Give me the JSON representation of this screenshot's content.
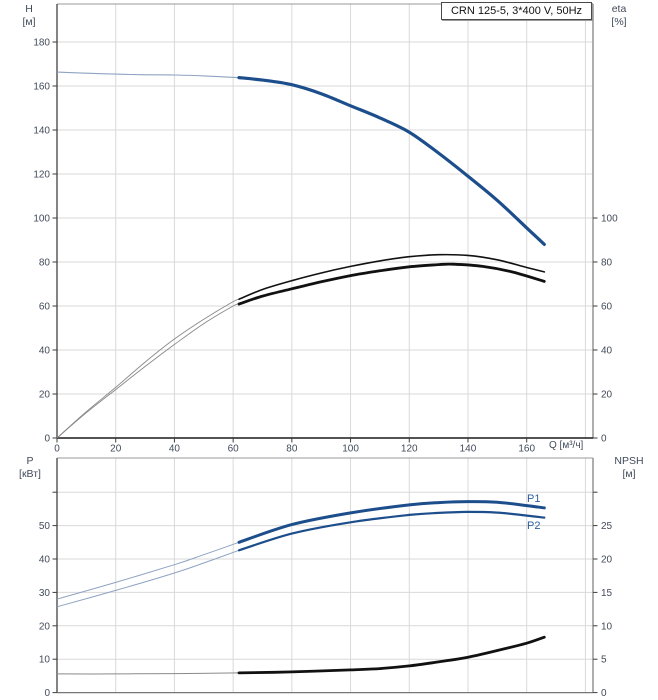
{
  "title_box": "CRN 125-5, 3*400 V, 50Hz",
  "colors": {
    "curve_blue": "#1d4e8c",
    "curve_blue_thin": "#8fa3c2",
    "curve_black": "#111111",
    "curve_black_thin": "#8a8a8a",
    "grid": "#d9d9d9",
    "border_dark": "#4f4f4f",
    "border_light": "#999999",
    "axis_bottom": "#1a1a1a",
    "tick_mark": "#3c3c3c",
    "tick_text": "#414b5a",
    "series_label_blue": "#2e5f9e"
  },
  "chart_data": [
    {
      "type": "line",
      "title": "CRN 125-5, 3*400 V, 50Hz",
      "xlabel": "Q [м³/ч]",
      "xlim": [
        0,
        182.6
      ],
      "x_ticks": [
        0,
        20,
        40,
        60,
        80,
        100,
        120,
        140,
        160
      ],
      "grid": true,
      "left_axis": {
        "label": "H",
        "unit": "[м]",
        "ticks": [
          0,
          20,
          40,
          60,
          80,
          100,
          120,
          140,
          160,
          180
        ],
        "lim": [
          0,
          197
        ]
      },
      "right_axis": {
        "label": "eta",
        "unit": "[%]",
        "ticks": [
          0,
          20,
          40,
          60,
          80,
          100
        ],
        "lim": [
          0,
          100
        ]
      },
      "duty_bold_from": 62,
      "series": [
        {
          "name": "H",
          "axis": "left",
          "color": "blue",
          "points": [
            [
              0,
              166.3
            ],
            [
              10,
              165.8
            ],
            [
              20,
              165.4
            ],
            [
              30,
              165.1
            ],
            [
              40,
              165.0
            ],
            [
              50,
              164.6
            ],
            [
              62,
              163.8
            ],
            [
              70,
              162.7
            ],
            [
              80,
              160.6
            ],
            [
              90,
              156.5
            ],
            [
              100,
              151.0
            ],
            [
              110,
              145.5
            ],
            [
              120,
              139.0
            ],
            [
              130,
              129.5
            ],
            [
              140,
              119.0
            ],
            [
              150,
              108.0
            ],
            [
              160,
              95.5
            ],
            [
              166,
              88.0
            ]
          ]
        },
        {
          "name": "eta-pump",
          "axis": "right",
          "color": "black",
          "points": [
            [
              0,
              0
            ],
            [
              10,
              12.0
            ],
            [
              20,
              23.0
            ],
            [
              30,
              34.5
            ],
            [
              40,
              45.0
            ],
            [
              50,
              54.0
            ],
            [
              60,
              62.0
            ],
            [
              70,
              67.5
            ],
            [
              80,
              71.5
            ],
            [
              90,
              75.0
            ],
            [
              100,
              78.0
            ],
            [
              110,
              80.5
            ],
            [
              120,
              82.4
            ],
            [
              130,
              83.3
            ],
            [
              140,
              83.0
            ],
            [
              150,
              81.0
            ],
            [
              160,
              77.5
            ],
            [
              166,
              75.5
            ]
          ]
        },
        {
          "name": "eta-total",
          "axis": "right",
          "color": "black",
          "points": [
            [
              0,
              0
            ],
            [
              10,
              11.5
            ],
            [
              20,
              22.0
            ],
            [
              30,
              32.5
            ],
            [
              40,
              42.5
            ],
            [
              50,
              52.0
            ],
            [
              60,
              60.0
            ],
            [
              70,
              64.5
            ],
            [
              80,
              67.8
            ],
            [
              90,
              71.0
            ],
            [
              100,
              73.8
            ],
            [
              110,
              76.0
            ],
            [
              120,
              77.8
            ],
            [
              130,
              78.8
            ],
            [
              135,
              79.0
            ],
            [
              145,
              78.0
            ],
            [
              155,
              75.5
            ],
            [
              166,
              71.2
            ]
          ]
        }
      ]
    },
    {
      "type": "line",
      "xlabel": "",
      "xlim": [
        0,
        182.6
      ],
      "x_ticks": [],
      "grid": true,
      "left_axis": {
        "label": "P",
        "unit": "[кВт]",
        "ticks": [
          0,
          10,
          20,
          30,
          40,
          50
        ],
        "unlabeled_ticks": [
          60
        ],
        "lim": [
          0,
          70
        ]
      },
      "right_axis": {
        "label": "NPSH",
        "unit": "[м]",
        "ticks": [
          0,
          5,
          10,
          15,
          20,
          25
        ],
        "unlabeled_ticks": [
          30
        ],
        "lim": [
          0,
          35
        ]
      },
      "duty_bold_from": 62,
      "series": [
        {
          "name": "P1",
          "axis": "left",
          "color": "blue",
          "label": "P1",
          "points": [
            [
              0,
              28.0
            ],
            [
              20,
              33.0
            ],
            [
              40,
              38.3
            ],
            [
              50,
              41.3
            ],
            [
              62,
              45.0
            ],
            [
              80,
              50.3
            ],
            [
              100,
              53.8
            ],
            [
              120,
              56.2
            ],
            [
              130,
              56.9
            ],
            [
              140,
              57.2
            ],
            [
              150,
              57.0
            ],
            [
              160,
              56.0
            ],
            [
              166,
              55.3
            ]
          ]
        },
        {
          "name": "P2",
          "axis": "left",
          "color": "blue",
          "label": "P2",
          "points": [
            [
              0,
              25.7
            ],
            [
              20,
              30.6
            ],
            [
              40,
              35.8
            ],
            [
              50,
              38.8
            ],
            [
              62,
              42.6
            ],
            [
              80,
              47.6
            ],
            [
              100,
              51.0
            ],
            [
              120,
              53.2
            ],
            [
              130,
              53.8
            ],
            [
              140,
              54.1
            ],
            [
              150,
              53.9
            ],
            [
              160,
              53.0
            ],
            [
              166,
              52.4
            ]
          ]
        },
        {
          "name": "NPSH",
          "axis": "right",
          "color": "black",
          "points": [
            [
              0,
              2.8
            ],
            [
              20,
              2.8
            ],
            [
              40,
              2.85
            ],
            [
              62,
              2.95
            ],
            [
              80,
              3.1
            ],
            [
              100,
              3.4
            ],
            [
              110,
              3.6
            ],
            [
              120,
              4.0
            ],
            [
              130,
              4.6
            ],
            [
              140,
              5.3
            ],
            [
              150,
              6.3
            ],
            [
              160,
              7.4
            ],
            [
              166,
              8.3
            ]
          ]
        }
      ]
    }
  ],
  "labels": {
    "p1": "P1",
    "p2": "P2"
  }
}
